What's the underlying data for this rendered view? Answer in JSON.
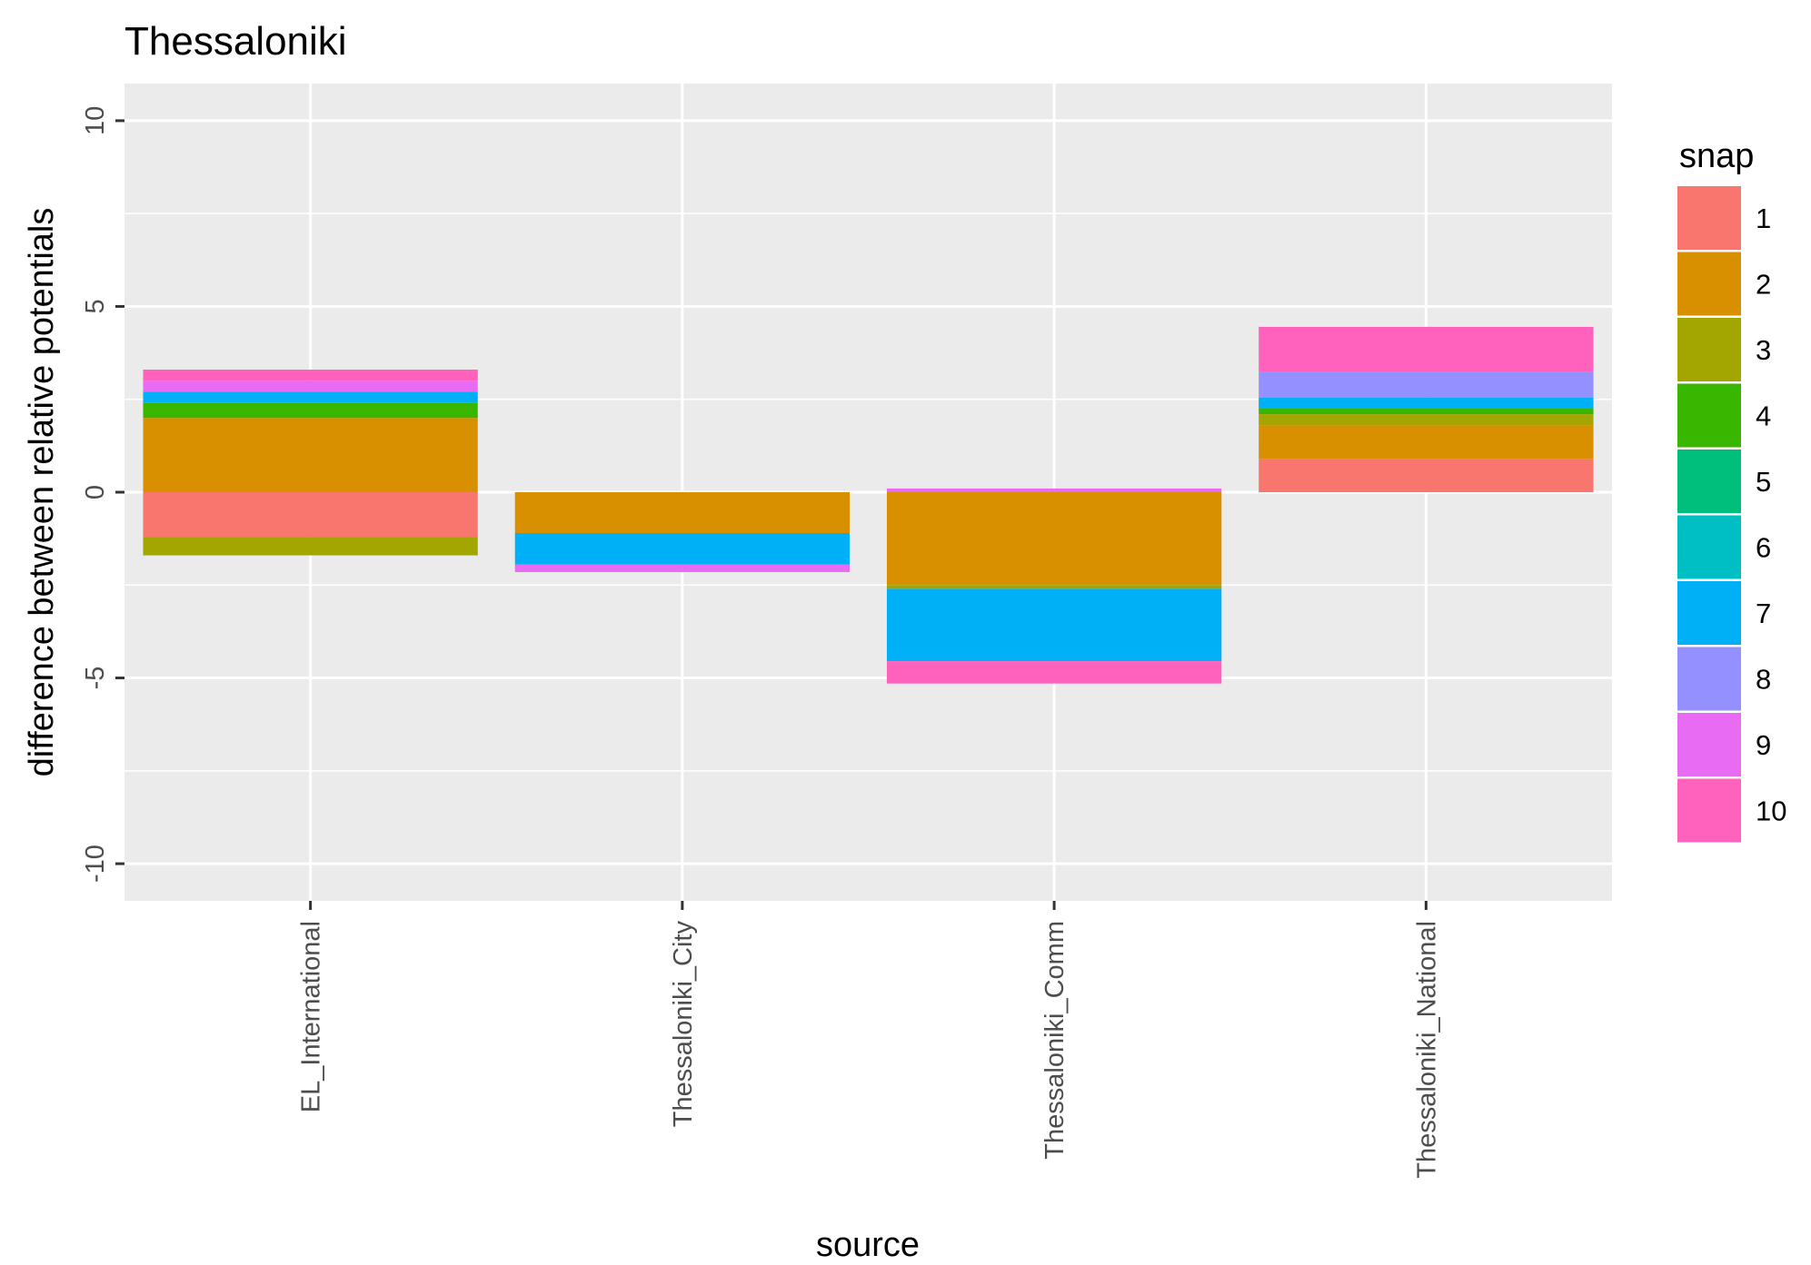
{
  "chart_data": {
    "type": "bar",
    "stacked": true,
    "title": "Thessaloniki",
    "xlabel": "source",
    "ylabel": "difference between relative potentials",
    "categories": [
      "EL_International",
      "Thessaloniki_City",
      "Thessaloniki_Comm",
      "Thessaloniki_National"
    ],
    "ylim": [
      -11,
      11
    ],
    "yticks": [
      -10,
      -5,
      0,
      5,
      10
    ],
    "ytick_labels": [
      "-10",
      "-5",
      "0",
      "5",
      "10"
    ],
    "grid": true,
    "legend": {
      "title": "snap",
      "position": "right",
      "entries": [
        "1",
        "2",
        "3",
        "4",
        "5",
        "6",
        "7",
        "8",
        "9",
        "10"
      ]
    },
    "series": [
      {
        "name": "1",
        "color": "#F8766D",
        "values": [
          -1.2,
          0,
          0,
          0.9
        ]
      },
      {
        "name": "2",
        "color": "#D89000",
        "values": [
          2.0,
          -1.1,
          -2.5,
          0.9
        ]
      },
      {
        "name": "3",
        "color": "#A3A500",
        "values": [
          -0.5,
          0,
          -0.1,
          0.3
        ]
      },
      {
        "name": "4",
        "color": "#39B600",
        "values": [
          0.4,
          0,
          0,
          0.15
        ]
      },
      {
        "name": "5",
        "color": "#00BF7D",
        "values": [
          0,
          0,
          0,
          0
        ]
      },
      {
        "name": "6",
        "color": "#00BFC4",
        "values": [
          0,
          0,
          0,
          0
        ]
      },
      {
        "name": "7",
        "color": "#00B0F6",
        "values": [
          0.3,
          -0.85,
          -1.95,
          0.3
        ]
      },
      {
        "name": "8",
        "color": "#9590FF",
        "values": [
          0,
          0,
          0,
          0.7
        ]
      },
      {
        "name": "9",
        "color": "#E76BF3",
        "values": [
          0.3,
          -0.2,
          0.1,
          0
        ]
      },
      {
        "name": "10",
        "color": "#FF62BC",
        "values": [
          0.3,
          0,
          -0.6,
          1.2
        ]
      }
    ]
  }
}
